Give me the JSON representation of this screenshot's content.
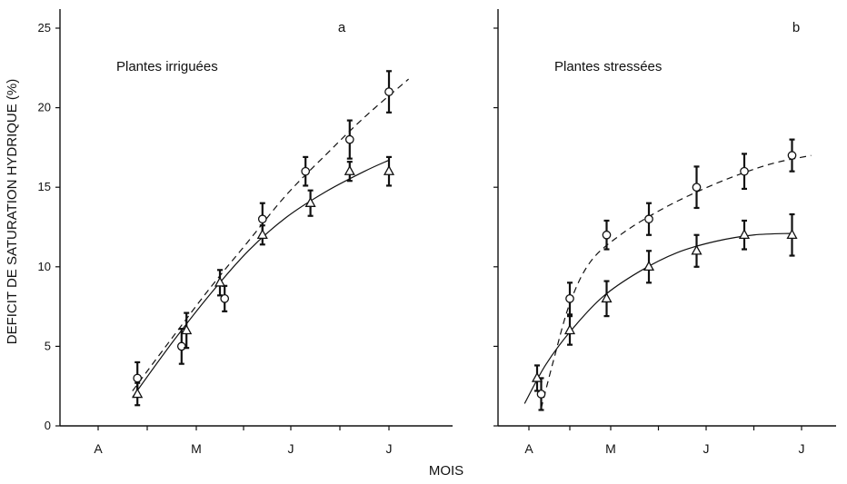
{
  "chart_data": {
    "type": "line",
    "ylabel": "DEFICIT DE SATURATION HYDRIQUE (%)",
    "xlabel": "MOIS",
    "ylim": [
      0,
      25
    ],
    "yticks": [
      0,
      5,
      10,
      15,
      20,
      25
    ],
    "xlim": [
      0,
      7.4
    ],
    "month_ticks": [
      {
        "x": 1,
        "label": "A"
      },
      {
        "x": 3,
        "label": "M"
      },
      {
        "x": 5,
        "label": "J"
      },
      {
        "x": 7,
        "label": "J"
      }
    ],
    "panels": [
      {
        "letter": "a",
        "title": "Plantes irriguées",
        "series": [
          {
            "marker": "circle",
            "line": "dashed",
            "points": [
              {
                "x": 1.8,
                "y": 3.0,
                "err": 1.0
              },
              {
                "x": 2.7,
                "y": 5.0,
                "err": 1.1
              },
              {
                "x": 3.6,
                "y": 8.0,
                "err": 0.8
              },
              {
                "x": 4.4,
                "y": 13.0,
                "err": 1.0
              },
              {
                "x": 5.3,
                "y": 16.0,
                "err": 0.9
              },
              {
                "x": 6.2,
                "y": 18.0,
                "err": 1.2
              },
              {
                "x": 7.0,
                "y": 21.0,
                "err": 1.3
              }
            ],
            "curve": [
              [
                1.7,
                2.2
              ],
              [
                2.5,
                5.5
              ],
              [
                3.3,
                8.7
              ],
              [
                4.1,
                11.6
              ],
              [
                4.9,
                14.5
              ],
              [
                5.7,
                17.0
              ],
              [
                6.5,
                19.4
              ],
              [
                7.4,
                21.8
              ]
            ]
          },
          {
            "marker": "triangle",
            "line": "solid",
            "points": [
              {
                "x": 1.8,
                "y": 2.0,
                "err": 0.7
              },
              {
                "x": 2.8,
                "y": 6.0,
                "err": 1.1
              },
              {
                "x": 3.5,
                "y": 9.0,
                "err": 0.8
              },
              {
                "x": 4.4,
                "y": 12.0,
                "err": 0.6
              },
              {
                "x": 5.4,
                "y": 14.0,
                "err": 0.8
              },
              {
                "x": 6.2,
                "y": 16.0,
                "err": 0.6
              },
              {
                "x": 7.0,
                "y": 16.0,
                "err": 0.9
              }
            ],
            "curve": [
              [
                1.7,
                1.8
              ],
              [
                2.5,
                5.2
              ],
              [
                3.3,
                8.3
              ],
              [
                4.1,
                11.0
              ],
              [
                4.9,
                13.1
              ],
              [
                5.7,
                14.7
              ],
              [
                6.5,
                16.0
              ],
              [
                7.0,
                16.7
              ]
            ]
          }
        ]
      },
      {
        "letter": "b",
        "title": "Plantes stressées",
        "series": [
          {
            "marker": "circle",
            "line": "dashed",
            "points": [
              {
                "x": 1.3,
                "y": 2.0,
                "err": 1.0
              },
              {
                "x": 2.0,
                "y": 8.0,
                "err": 1.0
              },
              {
                "x": 2.9,
                "y": 12.0,
                "err": 0.9
              },
              {
                "x": 3.8,
                "y": 13.0,
                "err": 1.0
              },
              {
                "x": 4.8,
                "y": 15.0,
                "err": 1.3
              },
              {
                "x": 5.8,
                "y": 16.0,
                "err": 1.1
              },
              {
                "x": 6.8,
                "y": 17.0,
                "err": 1.0
              }
            ],
            "curve": [
              [
                1.3,
                1.1
              ],
              [
                1.6,
                4.1
              ],
              [
                2.0,
                7.7
              ],
              [
                2.5,
                10.3
              ],
              [
                3.2,
                12.0
              ],
              [
                4.0,
                13.5
              ],
              [
                4.8,
                14.7
              ],
              [
                5.6,
                15.7
              ],
              [
                6.4,
                16.5
              ],
              [
                7.2,
                17.0
              ]
            ]
          },
          {
            "marker": "triangle",
            "line": "solid",
            "points": [
              {
                "x": 1.2,
                "y": 3.0,
                "err": 0.8
              },
              {
                "x": 2.0,
                "y": 6.0,
                "err": 0.9
              },
              {
                "x": 2.9,
                "y": 8.0,
                "err": 1.1
              },
              {
                "x": 3.8,
                "y": 10.0,
                "err": 1.0
              },
              {
                "x": 4.8,
                "y": 11.0,
                "err": 1.0
              },
              {
                "x": 5.8,
                "y": 12.0,
                "err": 0.9
              },
              {
                "x": 6.8,
                "y": 12.0,
                "err": 1.3
              }
            ],
            "curve": [
              [
                0.8,
                1.4
              ],
              [
                1.4,
                3.8
              ],
              [
                2.0,
                5.9
              ],
              [
                2.8,
                8.1
              ],
              [
                3.6,
                9.7
              ],
              [
                4.4,
                10.9
              ],
              [
                5.2,
                11.6
              ],
              [
                6.0,
                12.0
              ],
              [
                6.8,
                12.1
              ]
            ]
          }
        ]
      }
    ]
  }
}
